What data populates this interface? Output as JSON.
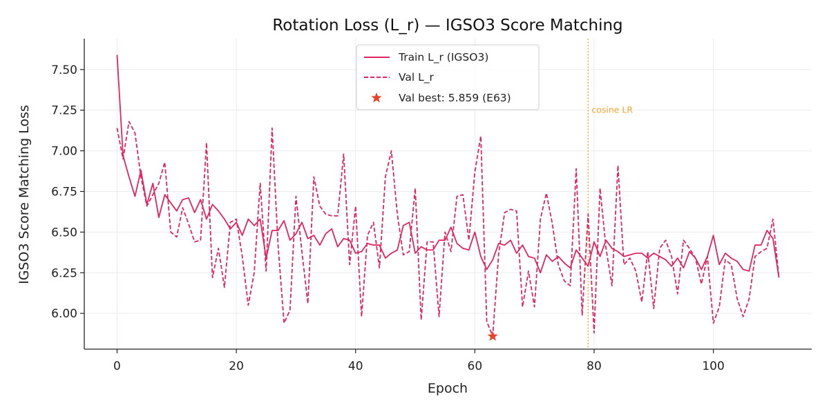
{
  "chart_data": {
    "type": "line",
    "title": "Rotation Loss (L_r) — IGSO3 Score Matching",
    "xlabel": "Epoch",
    "ylabel": "IGSO3 Score Matching Loss",
    "xlim": [
      -5.5,
      116.5
    ],
    "ylim": [
      5.78,
      7.69
    ],
    "xticks": [
      0,
      20,
      40,
      60,
      80,
      100
    ],
    "yticks": [
      6.0,
      6.25,
      6.5,
      6.75,
      7.0,
      7.25,
      7.5
    ],
    "grid": true,
    "legend_position": "top-center",
    "colors": {
      "train": "#e0245e",
      "val": "#e0245e",
      "best": "#e8412c",
      "vline": "#f0a830",
      "axis": "#222222",
      "grid": "#ebebeb"
    },
    "series": [
      {
        "name": "Train L_r (IGSO3)",
        "style": "solid",
        "values": [
          7.59,
          6.97,
          6.84,
          6.72,
          6.88,
          6.67,
          6.8,
          6.59,
          6.73,
          6.68,
          6.63,
          6.7,
          6.71,
          6.62,
          6.7,
          6.58,
          6.67,
          6.63,
          6.58,
          6.52,
          6.56,
          6.48,
          6.58,
          6.54,
          6.58,
          6.34,
          6.51,
          6.51,
          6.57,
          6.45,
          6.49,
          6.56,
          6.46,
          6.48,
          6.42,
          6.49,
          6.52,
          6.41,
          6.46,
          6.45,
          6.37,
          6.38,
          6.43,
          6.42,
          6.42,
          6.34,
          6.37,
          6.39,
          6.54,
          6.56,
          6.37,
          6.41,
          6.39,
          6.39,
          6.45,
          6.45,
          6.53,
          6.43,
          6.4,
          6.39,
          6.5,
          6.35,
          6.27,
          6.33,
          6.43,
          6.42,
          6.45,
          6.37,
          6.42,
          6.35,
          6.34,
          6.25,
          6.36,
          6.32,
          6.35,
          6.31,
          6.28,
          6.39,
          6.34,
          6.29,
          6.44,
          6.35,
          6.45,
          6.4,
          6.38,
          6.35,
          6.36,
          6.37,
          6.37,
          6.34,
          6.37,
          6.35,
          6.33,
          6.29,
          6.34,
          6.28,
          6.38,
          6.34,
          6.27,
          6.35,
          6.48,
          6.3,
          6.37,
          6.34,
          6.32,
          6.27,
          6.26,
          6.42,
          6.42,
          6.51,
          6.46,
          6.22
        ]
      },
      {
        "name": "Val L_r",
        "style": "dashed",
        "values": [
          7.14,
          6.95,
          7.18,
          7.11,
          6.84,
          6.66,
          6.73,
          6.8,
          6.93,
          6.5,
          6.47,
          6.65,
          6.55,
          6.44,
          6.45,
          7.05,
          6.22,
          6.4,
          6.16,
          6.56,
          6.58,
          6.35,
          6.05,
          6.25,
          6.8,
          6.26,
          7.14,
          6.42,
          5.94,
          6.02,
          6.72,
          6.38,
          6.06,
          6.84,
          6.66,
          6.61,
          6.6,
          6.6,
          6.98,
          6.3,
          6.66,
          5.98,
          6.48,
          6.56,
          6.28,
          6.84,
          7.0,
          6.61,
          6.36,
          6.38,
          6.77,
          5.96,
          6.44,
          6.44,
          5.98,
          6.5,
          6.38,
          6.72,
          6.73,
          6.45,
          6.87,
          7.09,
          5.95,
          5.86,
          6.37,
          6.62,
          6.64,
          6.63,
          6.04,
          6.26,
          6.04,
          6.58,
          6.74,
          6.55,
          6.3,
          6.2,
          6.17,
          6.89,
          5.99,
          6.61,
          5.88,
          6.77,
          6.4,
          6.17,
          6.91,
          6.3,
          6.34,
          6.26,
          6.07,
          6.38,
          6.03,
          6.4,
          6.45,
          6.35,
          6.12,
          6.45,
          6.4,
          6.34,
          6.18,
          6.35,
          5.94,
          6.04,
          6.33,
          6.3,
          6.09,
          5.98,
          6.09,
          6.35,
          6.38,
          6.4,
          6.58,
          6.22
        ]
      }
    ],
    "best_point": {
      "label": "Val best: 5.859 (E63)",
      "epoch": 63,
      "value": 5.859
    },
    "annotations": [
      {
        "type": "vline",
        "x": 79,
        "text": "cosine LR",
        "text_y": 7.25
      }
    ],
    "legend": {
      "train": "Train L_r (IGSO3)",
      "val": "Val L_r",
      "best": "Val best: 5.859 (E63)"
    }
  }
}
